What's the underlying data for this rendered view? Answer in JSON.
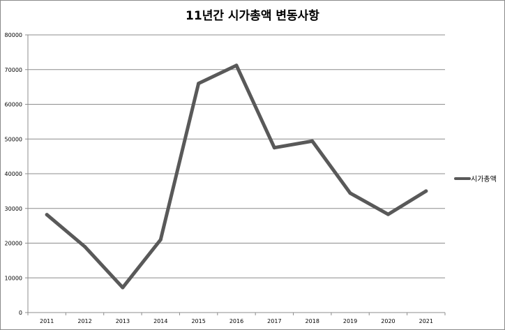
{
  "chart_data": {
    "type": "line",
    "title": "11년간 시가총액 변동사항",
    "xlabel": "",
    "ylabel": "",
    "categories": [
      "2011",
      "2012",
      "2013",
      "2014",
      "2015",
      "2016",
      "2017",
      "2018",
      "2019",
      "2020",
      "2021"
    ],
    "series": [
      {
        "name": "시가총액",
        "color": "#595959",
        "values": [
          28200,
          19000,
          7200,
          21000,
          66000,
          71200,
          47500,
          49400,
          34400,
          28300,
          35000
        ]
      }
    ],
    "ylim": [
      0,
      80000
    ],
    "yticks": [
      0,
      10000,
      20000,
      30000,
      40000,
      50000,
      60000,
      70000,
      80000
    ],
    "grid": true,
    "legend_position": "right"
  }
}
